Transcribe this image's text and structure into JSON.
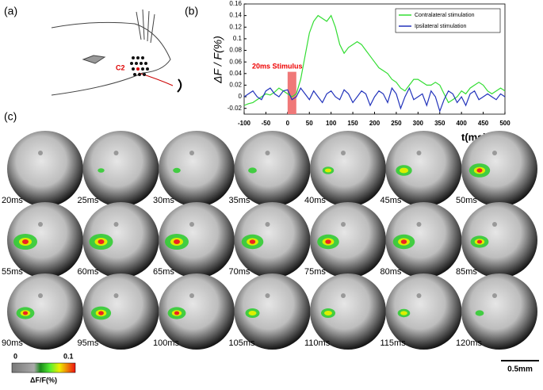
{
  "panels": {
    "a": "(a)",
    "b": "(b)",
    "c": "(c)"
  },
  "diagram": {
    "label": "C2"
  },
  "chart_data": {
    "type": "line",
    "x": [
      -100,
      -90,
      -80,
      -70,
      -60,
      -50,
      -40,
      -30,
      -20,
      -10,
      0,
      10,
      20,
      30,
      40,
      50,
      60,
      70,
      80,
      90,
      100,
      110,
      120,
      130,
      140,
      150,
      160,
      170,
      180,
      190,
      200,
      210,
      220,
      230,
      240,
      250,
      260,
      270,
      280,
      290,
      300,
      310,
      320,
      330,
      340,
      350,
      360,
      370,
      380,
      390,
      400,
      410,
      420,
      430,
      440,
      450,
      460,
      470,
      480,
      490,
      500
    ],
    "series": [
      {
        "name": "Contralateral stimulation",
        "color": "#33dd33",
        "values": [
          -0.015,
          -0.012,
          -0.01,
          -0.005,
          0.0,
          0.005,
          0.003,
          0.008,
          0.015,
          0.01,
          0.005,
          0.0,
          0.005,
          0.03,
          0.07,
          0.11,
          0.13,
          0.14,
          0.135,
          0.13,
          0.14,
          0.12,
          0.09,
          0.075,
          0.085,
          0.09,
          0.095,
          0.09,
          0.08,
          0.07,
          0.06,
          0.05,
          0.045,
          0.04,
          0.03,
          0.025,
          0.015,
          0.01,
          0.02,
          0.03,
          0.03,
          0.025,
          0.02,
          0.02,
          0.025,
          0.02,
          0.005,
          -0.01,
          -0.005,
          0.0,
          0.01,
          0.005,
          0.015,
          0.02,
          0.025,
          0.02,
          0.01,
          0.005,
          0.01,
          0.015,
          0.01
        ]
      },
      {
        "name": "Ipsilateral stimulation",
        "color": "#2233bb",
        "values": [
          0.0,
          0.005,
          0.01,
          0.0,
          -0.005,
          0.01,
          0.015,
          0.005,
          0.0,
          0.01,
          0.012,
          -0.005,
          0.0,
          0.015,
          0.005,
          -0.005,
          0.01,
          0.0,
          -0.01,
          0.005,
          0.01,
          0.0,
          -0.005,
          0.012,
          0.005,
          -0.01,
          0.0,
          0.01,
          0.005,
          -0.015,
          0.0,
          0.01,
          0.005,
          -0.01,
          0.015,
          0.005,
          -0.02,
          0.0,
          0.015,
          -0.005,
          0.0,
          0.005,
          -0.015,
          0.01,
          0.0,
          -0.025,
          -0.005,
          0.01,
          0.005,
          -0.01,
          0.0,
          -0.015,
          0.005,
          0.01,
          -0.005,
          0.0,
          0.005,
          0.0,
          -0.005,
          0.005,
          0.0
        ]
      }
    ],
    "xlim": [
      -100,
      500
    ],
    "xticks": [
      -100,
      -50,
      0,
      50,
      100,
      150,
      200,
      250,
      300,
      350,
      400,
      450,
      500
    ],
    "ylim": [
      -0.03,
      0.16
    ],
    "yticks": [
      -0.02,
      0,
      0.02,
      0.04,
      0.06,
      0.08,
      0.1,
      0.12,
      0.14,
      0.16
    ],
    "xlabel": "t(ms)",
    "ylabel": "ΔF / F(%)",
    "stimulus": {
      "x": [
        0,
        20
      ],
      "height": 0.043,
      "color": "#f07878"
    },
    "annotation": "20ms Stimulus",
    "legend": "upper right"
  },
  "frames": {
    "labels": [
      "20ms",
      "25ms",
      "30ms",
      "35ms",
      "40ms",
      "45ms",
      "50ms",
      "55ms",
      "60ms",
      "65ms",
      "70ms",
      "75ms",
      "80ms",
      "85ms",
      "90ms",
      "95ms",
      "100ms",
      "105ms",
      "110ms",
      "115ms",
      "120ms"
    ]
  },
  "colorbar": {
    "min_label": "0",
    "max_label": "0.1",
    "label": "ΔF/F(%)"
  },
  "scale_bar": {
    "label": "0.5mm"
  }
}
